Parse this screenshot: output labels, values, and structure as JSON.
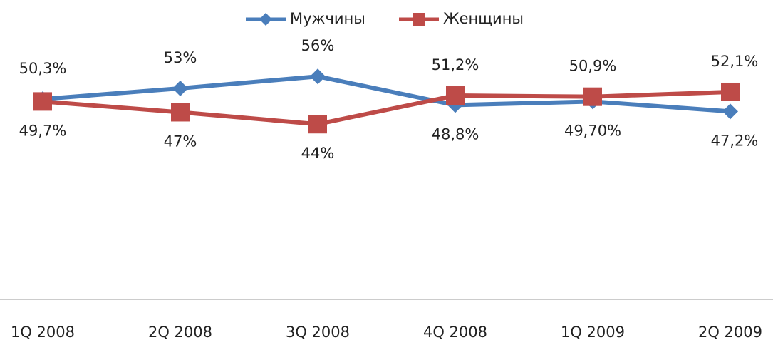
{
  "chart_data": {
    "type": "line",
    "categories": [
      "1Q 2008",
      "2Q 2008",
      "3Q 2008",
      "4Q 2008",
      "1Q 2009",
      "2Q 2009"
    ],
    "series": [
      {
        "name": "Мужчины",
        "color": "#4a7ebb",
        "marker": "diamond",
        "values": [
          50.3,
          53,
          56,
          48.8,
          49.7,
          47.2
        ],
        "value_labels": [
          "50,3%",
          "53%",
          "56%",
          "48,8%",
          "49,70%",
          "47,2%"
        ]
      },
      {
        "name": "Женщины",
        "color": "#be4b48",
        "marker": "square",
        "values": [
          49.7,
          47,
          44,
          51.2,
          50.9,
          52.1
        ],
        "value_labels": [
          "49,7%",
          "47%",
          "44%",
          "51,2%",
          "50,9%",
          "52,1%"
        ]
      }
    ],
    "ylim": [
      0,
      70
    ],
    "legend": "top"
  }
}
